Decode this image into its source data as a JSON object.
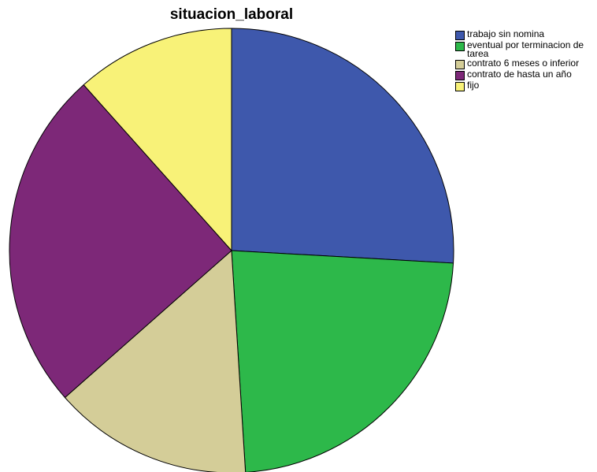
{
  "chart_data": {
    "type": "pie",
    "title": "situacion_laboral",
    "categories": [
      "trabajo sin nomina",
      "eventual por terminacion de tarea",
      "contrato 6 meses o inferior",
      "contrato de hasta un año",
      "fijo"
    ],
    "values": [
      25.9,
      23.1,
      14.5,
      24.9,
      11.6
    ],
    "unit": "%",
    "colors": [
      "#3e58ac",
      "#2db84a",
      "#d4cd98",
      "#7d2878",
      "#f8f278"
    ],
    "legend_position": "top-right",
    "start_angle_deg": 0,
    "direction": "clockwise"
  }
}
